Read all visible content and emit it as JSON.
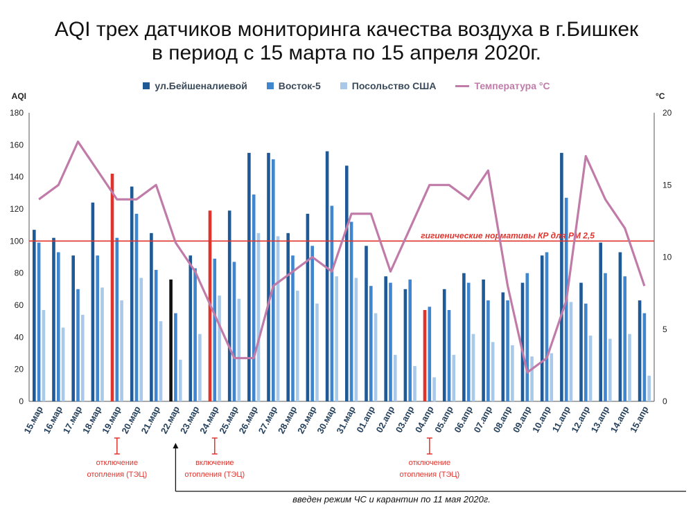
{
  "title_line1": "AQI трех датчиков мониторинга качества воздуха в г.Бишкек",
  "title_line2": "в период с 15 марта по 15 апреля 2020г.",
  "legend": [
    {
      "label": "ул.Бейшеналиевой",
      "color": "#1f5a96"
    },
    {
      "label": "Восток-5",
      "color": "#3f86cf"
    },
    {
      "label": "Посольство США",
      "color": "#a9c9ea"
    },
    {
      "label": "Температура °C",
      "color": "#c07ba8"
    }
  ],
  "colors": {
    "s1": "#1f5a96",
    "s2": "#3f86cf",
    "s3": "#a9c9ea",
    "temp": "#c07ba8",
    "ref": "#e0332c",
    "highlight_red": "#e0332c",
    "highlight_black": "#111111"
  },
  "chart_data": {
    "type": "bar",
    "title": "AQI трех датчиков мониторинга качества воздуха в г.Бишкек в период с 15 марта по 15 апреля 2020г.",
    "ylabel": "AQI",
    "y2label": "°C",
    "ylim": [
      0,
      180
    ],
    "y2lim": [
      0,
      20
    ],
    "yticks": [
      0,
      20,
      40,
      60,
      80,
      100,
      120,
      140,
      160,
      180
    ],
    "y2ticks": [
      0,
      5,
      10,
      15,
      20
    ],
    "categories": [
      "15.мар",
      "16.мар",
      "17.мар",
      "18.мар",
      "19.мар",
      "20.мар",
      "21.мар",
      "22.мар",
      "23.мар",
      "24.мар",
      "25.мар",
      "26.мар",
      "27.мар",
      "28.мар",
      "29.мар",
      "30.мар",
      "31.мар",
      "01.апр",
      "02.апр",
      "03.апр",
      "04.апр",
      "05.апр",
      "06.апр",
      "07.апр",
      "08.апр",
      "09.апр",
      "10.апр",
      "11.апр",
      "12.апр",
      "13.апр",
      "14.апр",
      "15.апр"
    ],
    "series": [
      {
        "name": "ул.Бейшеналиевой",
        "values": [
          107,
          102,
          91,
          124,
          142,
          134,
          105,
          76,
          91,
          119,
          119,
          155,
          155,
          105,
          117,
          156,
          147,
          97,
          78,
          70,
          57,
          70,
          80,
          76,
          68,
          74,
          91,
          155,
          74,
          99,
          93,
          63
        ]
      },
      {
        "name": "Восток-5",
        "values": [
          99,
          93,
          70,
          91,
          102,
          117,
          82,
          55,
          83,
          89,
          87,
          129,
          151,
          91,
          97,
          122,
          112,
          72,
          74,
          76,
          59,
          57,
          74,
          63,
          63,
          80,
          93,
          127,
          61,
          80,
          78,
          55
        ]
      },
      {
        "name": "Посольство США",
        "values": [
          57,
          46,
          54,
          71,
          63,
          77,
          50,
          26,
          42,
          66,
          64,
          105,
          103,
          69,
          61,
          78,
          77,
          55,
          29,
          22,
          15,
          29,
          42,
          37,
          35,
          28,
          30,
          62,
          41,
          39,
          42,
          16
        ]
      },
      {
        "name": "Температура °C",
        "axis": "right",
        "values": [
          14,
          15,
          18,
          16,
          14,
          14,
          15,
          11,
          9,
          6,
          3,
          3,
          8,
          9,
          10,
          9,
          13,
          13,
          9,
          12,
          15,
          15,
          14,
          16,
          8,
          2,
          3,
          7,
          17,
          14,
          12,
          8
        ]
      }
    ],
    "highlighted_bars": [
      {
        "category": "19.мар",
        "series": "ул.Бейшеналиевой",
        "color": "red"
      },
      {
        "category": "22.мар",
        "series": "ул.Бейшеналиевой",
        "color": "black"
      },
      {
        "category": "24.мар",
        "series": "ул.Бейшеналиевой",
        "color": "red"
      },
      {
        "category": "04.апр",
        "series": "ул.Бейшеналиевой",
        "color": "red"
      }
    ],
    "reference_line": {
      "value": 100,
      "label": "гигиенические нормативы КР для РМ 2,5"
    },
    "annotations": [
      {
        "category": "19.мар",
        "text_line1": "отключение",
        "text_line2": "отопления (ТЭЦ)"
      },
      {
        "category": "24.мар",
        "text_line1": "включение",
        "text_line2": "отопления (ТЭЦ)"
      },
      {
        "category": "04.апр",
        "text_line1": "отключение",
        "text_line2": "отопления (ТЭЦ)"
      }
    ],
    "period_note": {
      "start_category": "22.мар",
      "text": "введен режим ЧС и карантин по 11 мая 2020г."
    },
    "grid": false,
    "legend_position": "top"
  }
}
